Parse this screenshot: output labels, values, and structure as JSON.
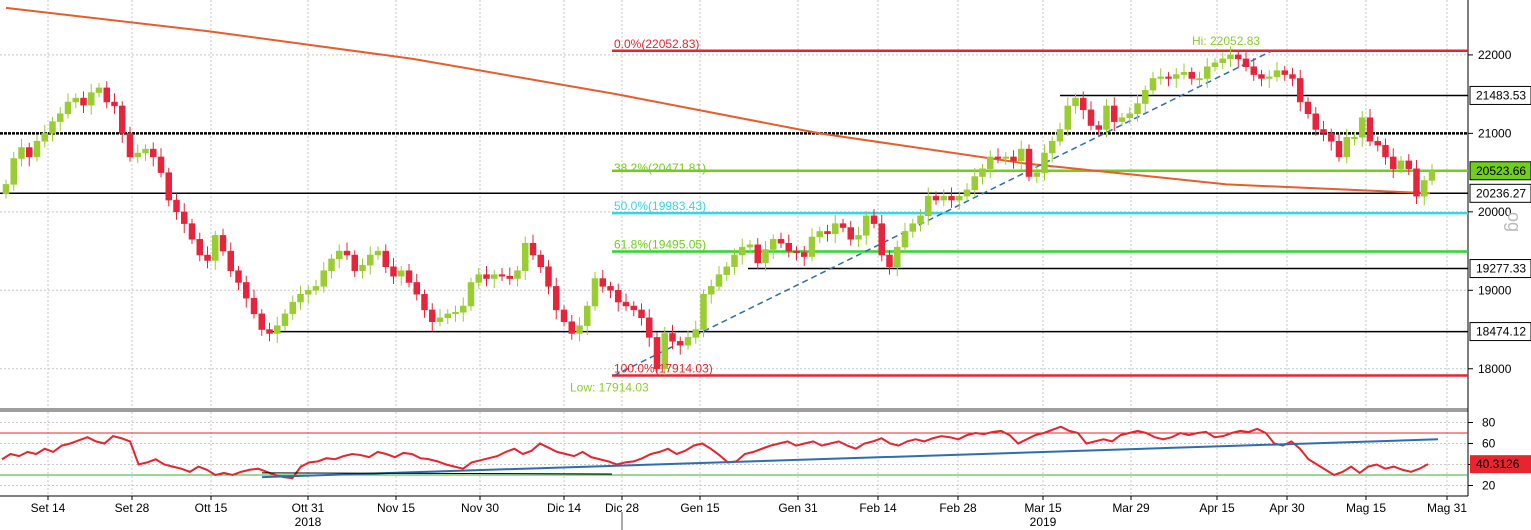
{
  "chart_data": [
    {
      "type": "candlestick",
      "ylim": [
        17500,
        22700
      ],
      "y_ticks": [
        18000,
        19000,
        20000,
        21000,
        22000
      ],
      "x_ticks": [
        "Set 14",
        "Set 28",
        "Ott 15",
        "Ott 31",
        "Nov 15",
        "Nov 30",
        "Dic 14",
        "Dic 28",
        "Gen 15",
        "Gen 31",
        "Feb 14",
        "Feb 28",
        "Mar 15",
        "Mar 29",
        "Apr 15",
        "Apr 30",
        "Mag 15",
        "Mag 31"
      ],
      "year_labels": [
        {
          "label": "2018",
          "at": "Ott 31"
        },
        {
          "label": "2019",
          "at": "Mar 15"
        }
      ],
      "grid": true,
      "side_label": "og",
      "close": [
        20350,
        20680,
        20820,
        20700,
        20900,
        21000,
        21150,
        21250,
        21400,
        21450,
        21360,
        21520,
        21580,
        21400,
        21350,
        21000,
        20700,
        20750,
        20800,
        20700,
        20500,
        20150,
        20000,
        19850,
        19650,
        19450,
        19380,
        19700,
        19500,
        19250,
        19100,
        18900,
        18700,
        18500,
        18450,
        18550,
        18700,
        18850,
        18950,
        19000,
        19050,
        19250,
        19400,
        19500,
        19450,
        19250,
        19320,
        19450,
        19500,
        19300,
        19180,
        19250,
        19100,
        18950,
        18750,
        18600,
        18650,
        18700,
        18720,
        18800,
        19100,
        19200,
        19150,
        19200,
        19180,
        19150,
        19250,
        19600,
        19450,
        19300,
        19050,
        18750,
        18600,
        18450,
        18550,
        18800,
        19150,
        19050,
        19000,
        18850,
        18800,
        18750,
        18650,
        18400,
        18000,
        18450,
        18350,
        18300,
        18400,
        18500,
        18950,
        19050,
        19200,
        19300,
        19450,
        19550,
        19580,
        19350,
        19520,
        19650,
        19600,
        19500,
        19480,
        19430,
        19680,
        19750,
        19720,
        19850,
        19800,
        19650,
        19700,
        19950,
        19850,
        19450,
        19300,
        19550,
        19750,
        19850,
        19950,
        20200,
        20150,
        20200,
        20150,
        20200,
        20280,
        20450,
        20550,
        20700,
        20680,
        20700,
        20650,
        20800,
        20450,
        20500,
        20750,
        20900,
        21050,
        21350,
        21450,
        21300,
        21100,
        21050,
        21350,
        21150,
        21200,
        21250,
        21380,
        21550,
        21700,
        21720,
        21700,
        21750,
        21780,
        21700,
        21700,
        21850,
        21900,
        21950,
        22000,
        21950,
        21850,
        21750,
        21700,
        21720,
        21800,
        21750,
        21700,
        21400,
        21250,
        21050,
        21000,
        20900,
        20700,
        20950,
        20950,
        21200,
        20900,
        20850,
        20700,
        20550,
        20650,
        20550,
        20200,
        20400,
        20523.66
      ]
    },
    {
      "type": "line",
      "series": [
        {
          "color": "#e85d2a",
          "values": [
            22600,
            22300,
            21950,
            21500,
            21000,
            20620,
            20350,
            20236.27
          ]
        }
      ]
    },
    {
      "type": "line",
      "ylim": [
        10,
        90
      ],
      "y_ticks": [
        20,
        40,
        60,
        80
      ],
      "current_value": "40.3126",
      "ref_levels": [
        70,
        30
      ],
      "series": [
        {
          "color": "#e8242e",
          "values": [
            45,
            50,
            48,
            52,
            50,
            55,
            52,
            58,
            60,
            63,
            66,
            62,
            60,
            67,
            65,
            62,
            40,
            42,
            45,
            40,
            38,
            36,
            33,
            38,
            35,
            30,
            32,
            30,
            33,
            35,
            36,
            33,
            30,
            28,
            27,
            38,
            42,
            43,
            46,
            45,
            48,
            50,
            49,
            47,
            52,
            50,
            47,
            51,
            50,
            46,
            45,
            43,
            40,
            38,
            36,
            42,
            44,
            46,
            48,
            52,
            55,
            50,
            53,
            60,
            56,
            52,
            50,
            48,
            52,
            47,
            45,
            43,
            40,
            42,
            43,
            46,
            50,
            52,
            55,
            50,
            53,
            58,
            60,
            55,
            49,
            42,
            43,
            50,
            52,
            55,
            58,
            60,
            62,
            58,
            60,
            62,
            58,
            60,
            62,
            58,
            55,
            60,
            62,
            65,
            60,
            58,
            62,
            64,
            62,
            65,
            67,
            66,
            64,
            68,
            70,
            69,
            71,
            72,
            68,
            60,
            64,
            68,
            70,
            73,
            76,
            72,
            70,
            60,
            62,
            64,
            62,
            68,
            70,
            72,
            70,
            66,
            64,
            66,
            70,
            68,
            70,
            71,
            66,
            67,
            70,
            72,
            71,
            74,
            70,
            60,
            58,
            62,
            55,
            45,
            40,
            35,
            30,
            33,
            38,
            32,
            38,
            40,
            36,
            38,
            35,
            33,
            36,
            40.3126
          ]
        },
        {
          "color": "#2e6db4",
          "values": [
            28,
            64
          ]
        },
        {
          "color": "#000000",
          "values": [
            32,
            31
          ]
        }
      ]
    }
  ],
  "levels": [
    {
      "value": 22052.83,
      "label": "",
      "color": "#e8242e"
    },
    {
      "value": 21483.53,
      "label": "21483.53",
      "color": "#000000"
    },
    {
      "value": 21000,
      "label": "",
      "color": "#000000"
    },
    {
      "value": 20523.66,
      "label": "20523.66",
      "color": "#6fcf1a"
    },
    {
      "value": 20236.27,
      "label": "20236.27",
      "color": "#000000"
    },
    {
      "value": 19983.43,
      "label": "",
      "color": "#37d4e8"
    },
    {
      "value": 19495.05,
      "label": "",
      "color": "#2fd62f"
    },
    {
      "value": 19277.33,
      "label": "19277.33",
      "color": "#000000"
    },
    {
      "value": 18474.12,
      "label": "18474.12",
      "color": "#000000"
    },
    {
      "value": 17914.03,
      "label": "",
      "color": "#e8242e"
    }
  ],
  "fib_labels": [
    {
      "text": "0.0%(22052.83)",
      "value": 22052.83,
      "color": "#e8242e"
    },
    {
      "text": "38.2%(20471.81)",
      "value": 20471.81,
      "color": "#6fcf1a"
    },
    {
      "text": "50.0%(19983.43)",
      "value": 19983.43,
      "color": "#37d4e8"
    },
    {
      "text": "61.8%(19495.05)",
      "value": 19495.05,
      "color": "#6fcf1a"
    },
    {
      "text": "100.0%(17914.03)",
      "value": 17914.03,
      "color": "#e8242e"
    }
  ],
  "hi_label": "Hi: 22052.83",
  "low_label": "Low: 17914.03",
  "hi_value": 22052.83,
  "low_value": 17914.03,
  "colors": {
    "up": "#9acd32",
    "down": "#e8243c",
    "grid": "#c8c8c8",
    "separator": "#9e9e9e",
    "badge_text": "#ffffff"
  }
}
